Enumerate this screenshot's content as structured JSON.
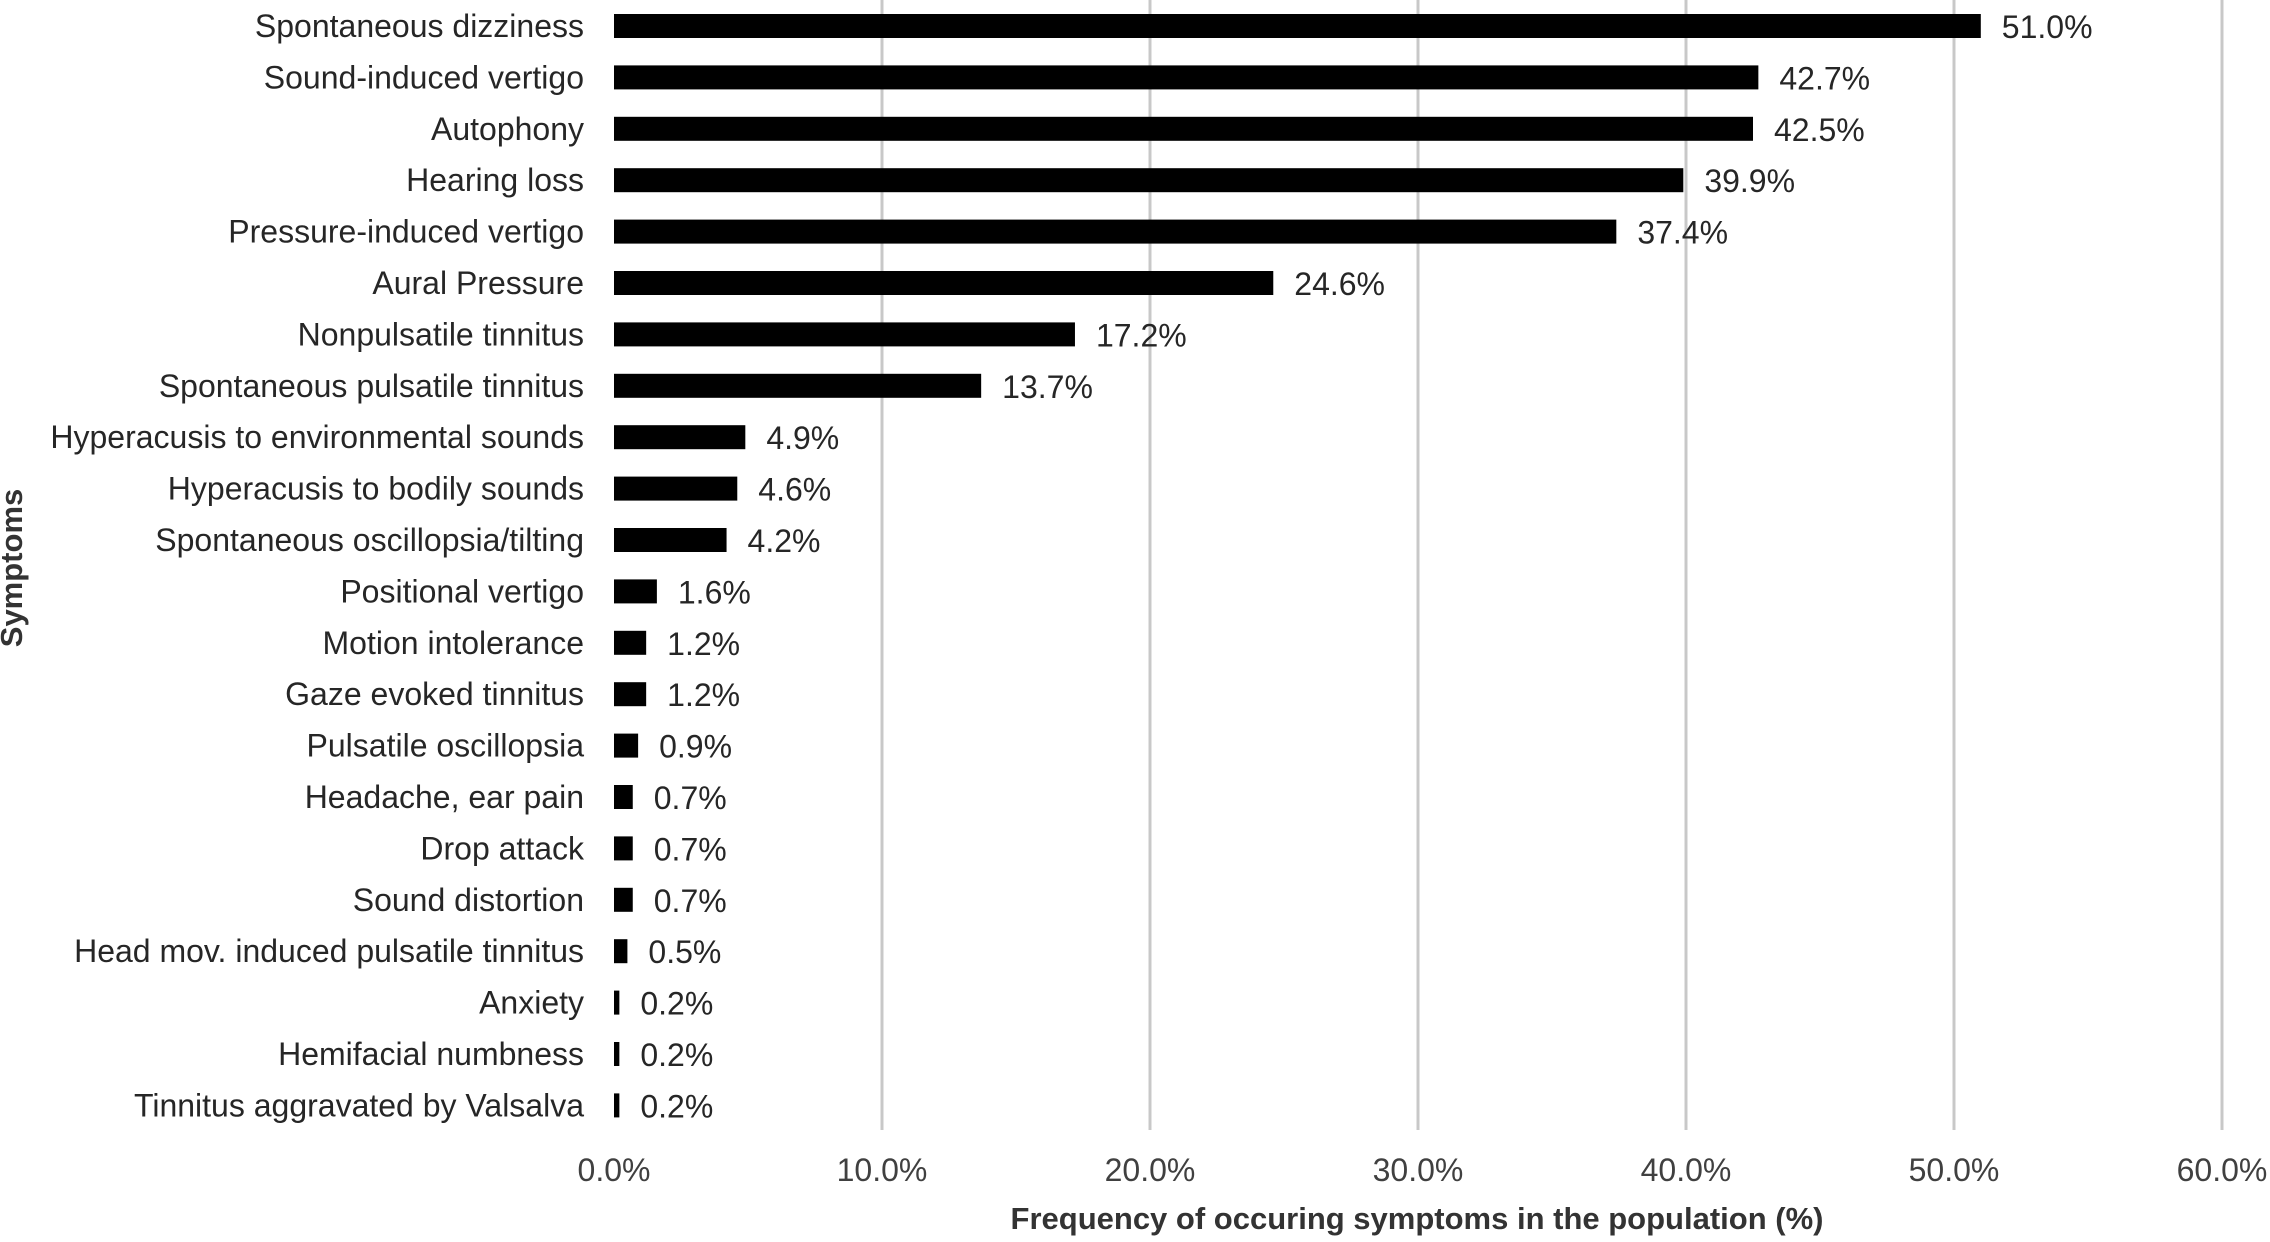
{
  "chart_data": {
    "type": "bar",
    "orientation": "horizontal",
    "categories": [
      "Spontaneous dizziness",
      "Sound-induced vertigo",
      "Autophony",
      "Hearing loss",
      "Pressure-induced vertigo",
      "Aural Pressure",
      "Nonpulsatile tinnitus",
      "Spontaneous pulsatile tinnitus",
      "Hyperacusis to environmental sounds",
      "Hyperacusis to bodily sounds",
      "Spontaneous oscillopsia/tilting",
      "Positional vertigo",
      "Motion intolerance",
      "Gaze evoked tinnitus",
      "Pulsatile oscillopsia",
      "Headache, ear pain",
      "Drop attack",
      "Sound distortion",
      "Head mov. induced pulsatile tinnitus",
      "Anxiety",
      "Hemifacial numbness",
      "Tinnitus aggravated by Valsalva"
    ],
    "values": [
      51.0,
      42.7,
      42.5,
      39.9,
      37.4,
      24.6,
      17.2,
      13.7,
      4.9,
      4.6,
      4.2,
      1.6,
      1.2,
      1.2,
      0.9,
      0.7,
      0.7,
      0.7,
      0.5,
      0.2,
      0.2,
      0.2
    ],
    "value_labels": [
      "51.0%",
      "42.7%",
      "42.5%",
      "39.9%",
      "37.4%",
      "24.6%",
      "17.2%",
      "13.7%",
      "4.9%",
      "4.6%",
      "4.2%",
      "1.6%",
      "1.2%",
      "1.2%",
      "0.9%",
      "0.7%",
      "0.7%",
      "0.7%",
      "0.5%",
      "0.2%",
      "0.2%",
      "0.2%"
    ],
    "xlabel": "Frequency of occuring symptoms in the population (%)",
    "ylabel": "Symptoms",
    "xlim": [
      0,
      60
    ],
    "xticks": [
      0,
      10,
      20,
      30,
      40,
      50,
      60
    ],
    "xtick_labels": [
      "0.0%",
      "10.0%",
      "20.0%",
      "30.0%",
      "40.0%",
      "50.0%",
      "60.0%"
    ],
    "grid": "vertical",
    "legend": "none",
    "bar_color": "#000000"
  }
}
